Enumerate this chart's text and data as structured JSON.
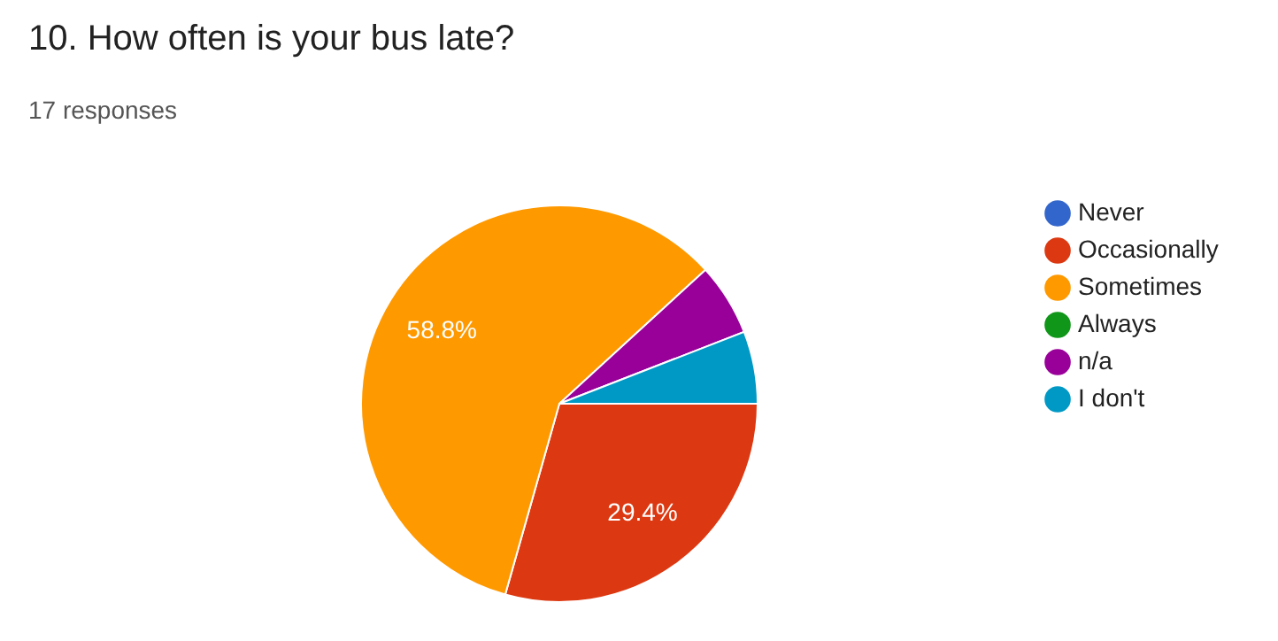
{
  "chart_data": {
    "type": "pie",
    "title": "10. How often is your bus late?",
    "subtitle": "17 responses",
    "categories": [
      "Never",
      "Occasionally",
      "Sometimes",
      "Always",
      "n/a",
      "I don't"
    ],
    "values": [
      0,
      29.4,
      58.8,
      0,
      5.9,
      5.9
    ],
    "colors": [
      "#3366cc",
      "#dc3912",
      "#ff9900",
      "#109618",
      "#990099",
      "#0099c6"
    ],
    "value_labels": [
      null,
      "29.4%",
      "58.8%",
      null,
      null,
      null
    ],
    "legend": "right"
  }
}
